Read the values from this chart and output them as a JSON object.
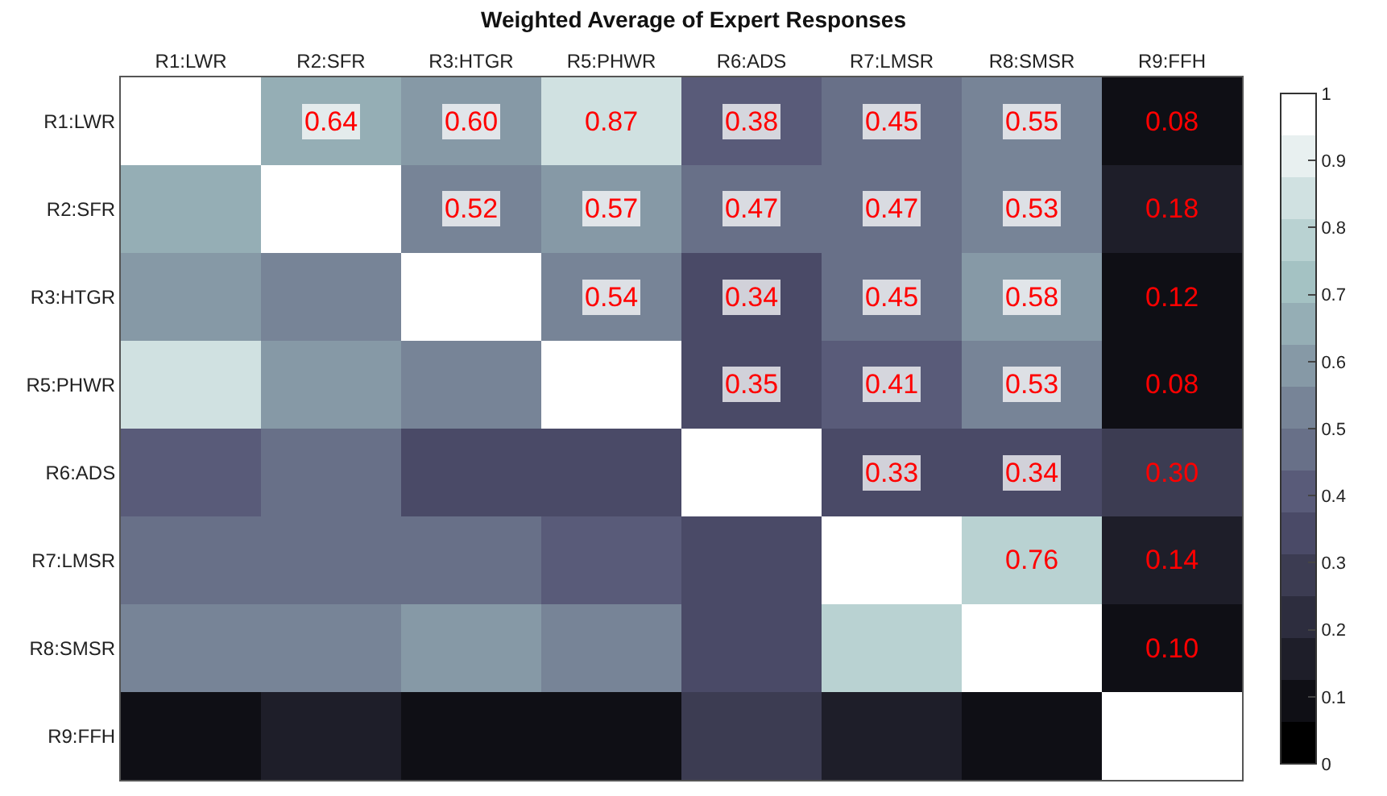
{
  "chart_data": {
    "type": "heatmap",
    "title": "Weighted Average of Expert Responses",
    "categories": [
      "R1:LWR",
      "R2:SFR",
      "R3:HTGR",
      "R5:PHWR",
      "R6:ADS",
      "R7:LMSR",
      "R8:SMSR",
      "R9:FFH"
    ],
    "y_categories": [
      "R1:LWR",
      "R2:SFR",
      "R3:HTGR",
      "R5:PHWR",
      "R6:ADS",
      "R7:LMSR",
      "R8:SMSR",
      "R9:FFH"
    ],
    "cells": [
      [
        1,
        0.64,
        0.6,
        0.87,
        0.38,
        0.45,
        0.55,
        0.08
      ],
      [
        0.64,
        1,
        0.52,
        0.57,
        0.47,
        0.47,
        0.53,
        0.18
      ],
      [
        0.6,
        0.52,
        1,
        0.54,
        0.34,
        0.45,
        0.58,
        0.12
      ],
      [
        0.87,
        0.57,
        0.54,
        1,
        0.35,
        0.41,
        0.53,
        0.08
      ],
      [
        0.38,
        0.47,
        0.34,
        0.35,
        1,
        0.33,
        0.34,
        0.3
      ],
      [
        0.45,
        0.47,
        0.45,
        0.41,
        0.33,
        1,
        0.76,
        0.14
      ],
      [
        0.55,
        0.53,
        0.58,
        0.53,
        0.34,
        0.76,
        1,
        0.1
      ],
      [
        0.08,
        0.18,
        0.12,
        0.08,
        0.3,
        0.14,
        0.1,
        1
      ]
    ],
    "cell_labels": [
      [
        null,
        "0.64",
        "0.60",
        "0.87",
        "0.38",
        "0.45",
        "0.55",
        "0.08"
      ],
      [
        null,
        null,
        "0.52",
        "0.57",
        "0.47",
        "0.47",
        "0.53",
        "0.18"
      ],
      [
        null,
        null,
        null,
        "0.54",
        "0.34",
        "0.45",
        "0.58",
        "0.12"
      ],
      [
        null,
        null,
        null,
        null,
        "0.35",
        "0.41",
        "0.53",
        "0.08"
      ],
      [
        null,
        null,
        null,
        null,
        null,
        "0.33",
        "0.34",
        "0.30"
      ],
      [
        null,
        null,
        null,
        null,
        null,
        null,
        "0.76",
        "0.14"
      ],
      [
        null,
        null,
        null,
        null,
        null,
        null,
        null,
        "0.10"
      ],
      [
        null,
        null,
        null,
        null,
        null,
        null,
        null,
        null
      ]
    ],
    "clim": [
      0,
      1
    ],
    "cticks": [
      0,
      0.1,
      0.2,
      0.3,
      0.4,
      0.5,
      0.6,
      0.7,
      0.8,
      0.9,
      1
    ]
  }
}
